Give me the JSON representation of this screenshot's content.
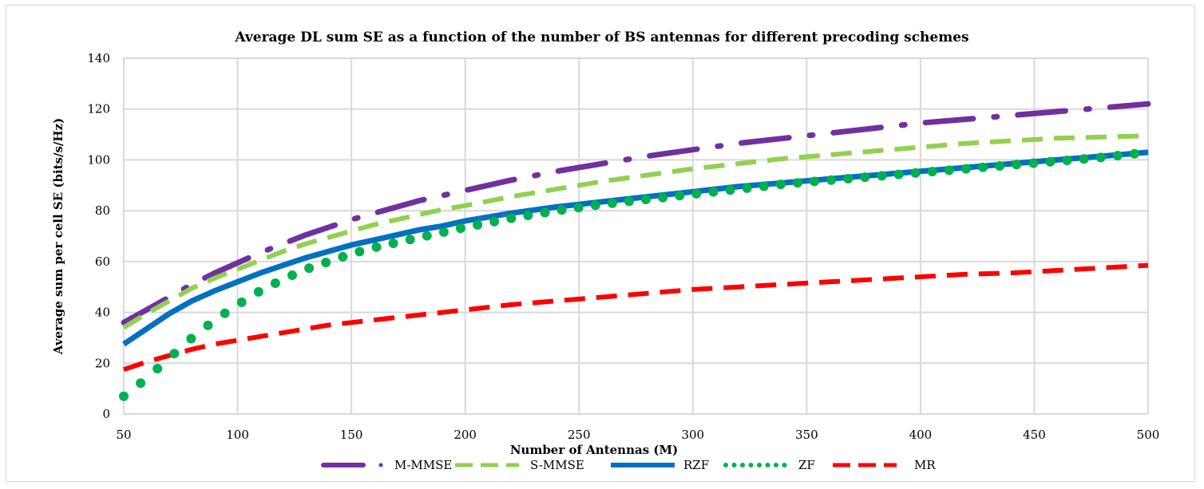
{
  "chart_data": {
    "type": "line",
    "title": "Average DL sum SE as a function of the number of BS antennas for different precoding schemes",
    "xlabel": "Number of Antennas (M)",
    "ylabel": "Average sum per cell SE (bits/s/Hz)",
    "xlim": [
      50,
      500
    ],
    "ylim": [
      0,
      140
    ],
    "xticks": [
      "50",
      "100",
      "150",
      "200",
      "250",
      "300",
      "350",
      "400",
      "450",
      "500"
    ],
    "yticks": [
      "0",
      "20",
      "40",
      "60",
      "80",
      "100",
      "120",
      "140"
    ],
    "grid": true,
    "legend_position": "bottom",
    "x": [
      50,
      60,
      70,
      80,
      90,
      100,
      110,
      120,
      130,
      140,
      150,
      160,
      170,
      180,
      190,
      200,
      220,
      240,
      260,
      280,
      300,
      320,
      340,
      360,
      380,
      400,
      420,
      440,
      460,
      480,
      500
    ],
    "series": [
      {
        "name": "M-MMSE",
        "color": "#7030a0",
        "style": "long-dash-dot",
        "values": [
          36,
          41,
          46,
          51,
          55.5,
          59.5,
          63.5,
          67,
          70.5,
          73.5,
          76.5,
          79,
          81.5,
          84,
          86,
          88,
          92,
          95.5,
          98.5,
          101.5,
          104,
          106.5,
          108.5,
          110.5,
          112.5,
          114.5,
          116,
          117.5,
          119,
          120.5,
          122
        ]
      },
      {
        "name": "S-MMSE",
        "color": "#92d050",
        "style": "dashed",
        "values": [
          34,
          39.5,
          44.5,
          49.5,
          53.5,
          57,
          60.5,
          64,
          67,
          69.5,
          72,
          74.5,
          76.5,
          78.5,
          80.5,
          82,
          85.5,
          88.5,
          91.5,
          94,
          96.5,
          98.5,
          100.5,
          102,
          103.5,
          105,
          106.5,
          107.5,
          108.5,
          109,
          109.5
        ]
      },
      {
        "name": "RZF",
        "color": "#0070c0",
        "style": "solid",
        "values": [
          27.5,
          33.5,
          39.5,
          44.5,
          48.5,
          52,
          55.5,
          58.5,
          61.5,
          64,
          66.5,
          68.5,
          70.5,
          72.5,
          74,
          76,
          79,
          81.5,
          83.5,
          85.5,
          87.5,
          89.5,
          91,
          92.5,
          94,
          95.5,
          97,
          98.5,
          100,
          101.5,
          103
        ]
      },
      {
        "name": "ZF",
        "color": "#00b050",
        "style": "dotted",
        "values": [
          7,
          14,
          22,
          30,
          37,
          43,
          48.5,
          53,
          57,
          60,
          63,
          65.5,
          67.5,
          69.5,
          71.5,
          73.5,
          77,
          80,
          82.5,
          84.5,
          86.5,
          88.5,
          90.5,
          92,
          93.5,
          95,
          96.5,
          98,
          99.5,
          101,
          103
        ]
      },
      {
        "name": "MR",
        "color": "#ff0000",
        "style": "dashed",
        "values": [
          17.5,
          20.5,
          23,
          25.5,
          27.5,
          29,
          30.5,
          32,
          33.5,
          35,
          36,
          37,
          38,
          39,
          40,
          41,
          43,
          44.5,
          46,
          47.5,
          49,
          50,
          51,
          52,
          53,
          54,
          55,
          55.5,
          56.5,
          57.5,
          58.5
        ]
      }
    ]
  }
}
